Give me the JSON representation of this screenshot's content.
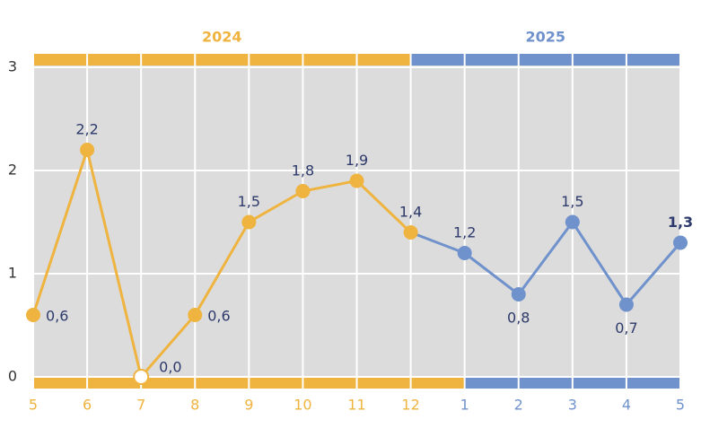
{
  "chart_data": {
    "type": "line",
    "groups": [
      {
        "label": "2024",
        "color": "#efb43f",
        "categories": [
          "5",
          "6",
          "7",
          "8",
          "9",
          "10",
          "11",
          "12"
        ],
        "values": [
          0.6,
          2.2,
          0.0,
          0.6,
          1.5,
          1.8,
          1.9,
          1.4
        ],
        "value_labels": [
          "0,6",
          "2,2",
          "0,0",
          "0,6",
          "1,5",
          "1,8",
          "1,9",
          "1,4"
        ]
      },
      {
        "label": "2025",
        "color": "#7092cc",
        "categories": [
          "1",
          "2",
          "3",
          "4",
          "5"
        ],
        "values": [
          1.2,
          0.8,
          1.5,
          0.7,
          1.3
        ],
        "value_labels": [
          "1,2",
          "0,8",
          "1,5",
          "0,7",
          "1,3"
        ]
      }
    ],
    "ylim": [
      0,
      3
    ],
    "yticks": [
      0,
      1,
      2,
      3
    ],
    "grid": true
  }
}
